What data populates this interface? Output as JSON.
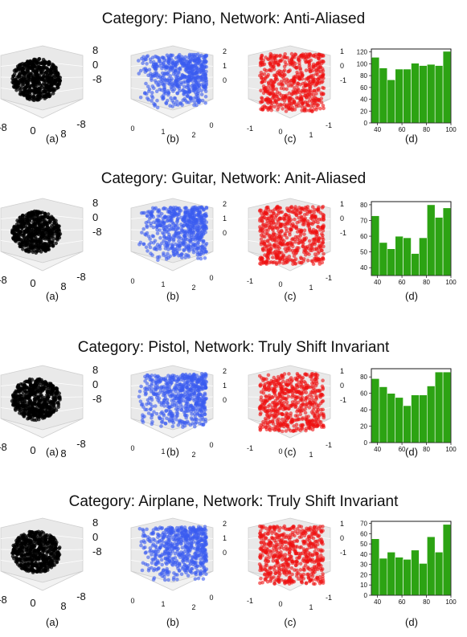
{
  "rows": [
    {
      "title": "Category: Piano,  Network: Anti-Aliased"
    },
    {
      "title": "Category: Guitar, Network: Anit-Aliased"
    },
    {
      "title": "Category: Pistol, Network: Truly Shift Invariant"
    },
    {
      "title": "Category: Airplane, Network: Truly Shift Invariant"
    }
  ],
  "captions": [
    "(a)",
    "(b)",
    "(c)",
    "(d)"
  ],
  "scatter_ticks": {
    "a": {
      "z": [
        "8",
        "0",
        "-8"
      ],
      "x": [
        "-8",
        "0",
        "8"
      ],
      "y": [
        "-8"
      ]
    },
    "b": {
      "z": [
        "2",
        "1",
        "0"
      ],
      "x": [
        "0",
        "1",
        "2"
      ],
      "y": [
        "0"
      ]
    },
    "c": {
      "z": [
        "1",
        "0",
        "-1"
      ],
      "x": [
        "-1",
        "0",
        "1"
      ],
      "y": [
        "-1"
      ]
    }
  },
  "colors": {
    "a": "#000000",
    "b": "#3a5cf0",
    "c": "#ee1111",
    "bar": "#2ca313",
    "pane": "#e9e9e9"
  },
  "chart_data": [
    {
      "type": "bar",
      "row": 1,
      "xlim": [
        35,
        100
      ],
      "ylim": [
        0,
        125
      ],
      "x_ticks": [
        40,
        60,
        80,
        100
      ],
      "y_ticks": [
        0,
        20,
        40,
        60,
        80,
        100,
        120
      ],
      "bin_edges": [
        35,
        41.5,
        48,
        54.5,
        61,
        67.5,
        74,
        80.5,
        87,
        93.5,
        100
      ],
      "values": [
        111,
        93,
        73,
        91,
        91,
        101,
        97,
        99,
        97,
        121
      ]
    },
    {
      "type": "bar",
      "row": 2,
      "xlim": [
        35,
        100
      ],
      "ylim": [
        35,
        82
      ],
      "x_ticks": [
        40,
        60,
        80,
        100
      ],
      "y_ticks": [
        40,
        50,
        60,
        70,
        80
      ],
      "bin_edges": [
        35,
        41.5,
        48,
        54.5,
        61,
        67.5,
        74,
        80.5,
        87,
        93.5,
        100
      ],
      "values": [
        73,
        56,
        52,
        60,
        59,
        49,
        59,
        80,
        72,
        78
      ]
    },
    {
      "type": "bar",
      "row": 3,
      "xlim": [
        35,
        100
      ],
      "ylim": [
        0,
        90
      ],
      "x_ticks": [
        40,
        60,
        80,
        100
      ],
      "y_ticks": [
        0,
        20,
        40,
        60,
        80
      ],
      "bin_edges": [
        35,
        41.5,
        48,
        54.5,
        61,
        67.5,
        74,
        80.5,
        87,
        93.5,
        100
      ],
      "values": [
        78,
        68,
        60,
        55,
        45,
        58,
        58,
        69,
        86,
        86
      ]
    },
    {
      "type": "bar",
      "row": 4,
      "xlim": [
        35,
        100
      ],
      "ylim": [
        0,
        72
      ],
      "x_ticks": [
        40,
        60,
        80,
        100
      ],
      "y_ticks": [
        0,
        10,
        20,
        30,
        40,
        50,
        60,
        70
      ],
      "bin_edges": [
        35,
        41.5,
        48,
        54.5,
        61,
        67.5,
        74,
        80.5,
        87,
        93.5,
        100
      ],
      "values": [
        55,
        36,
        42,
        37,
        35,
        44,
        31,
        57,
        42,
        69
      ]
    }
  ]
}
